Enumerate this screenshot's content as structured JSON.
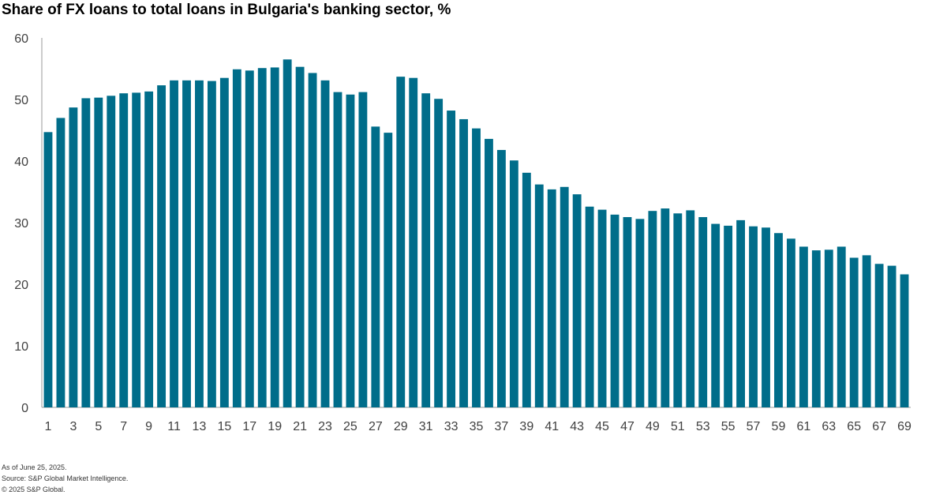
{
  "chart_data": {
    "type": "bar",
    "title": "Share of FX loans to total loans in Bulgaria's banking sector, %",
    "xlabel": "",
    "ylabel": "",
    "ylim": [
      0,
      60
    ],
    "yticks": [
      0,
      10,
      20,
      30,
      40,
      50,
      60
    ],
    "grid": false,
    "bar_color": "#006d8a",
    "categories": [
      1,
      2,
      3,
      4,
      5,
      6,
      7,
      8,
      9,
      10,
      11,
      12,
      13,
      14,
      15,
      16,
      17,
      18,
      19,
      20,
      21,
      22,
      23,
      24,
      25,
      26,
      27,
      28,
      29,
      30,
      31,
      32,
      33,
      34,
      35,
      36,
      37,
      38,
      39,
      40,
      41,
      42,
      43,
      44,
      45,
      46,
      47,
      48,
      49,
      50,
      51,
      52,
      53,
      54,
      55,
      56,
      57,
      58,
      59,
      60,
      61,
      62,
      63,
      64,
      65,
      66,
      67,
      68,
      69
    ],
    "x_tick_labels": [
      "1",
      "3",
      "5",
      "7",
      "9",
      "11",
      "13",
      "15",
      "17",
      "19",
      "21",
      "23",
      "25",
      "27",
      "29",
      "31",
      "33",
      "35",
      "37",
      "39",
      "41",
      "43",
      "45",
      "47",
      "49",
      "51",
      "53",
      "55",
      "57",
      "59",
      "61",
      "63",
      "65",
      "67",
      "69"
    ],
    "values": [
      44.7,
      47.0,
      48.7,
      50.2,
      50.3,
      50.6,
      51.0,
      51.1,
      51.3,
      52.3,
      53.1,
      53.1,
      53.1,
      53.0,
      53.5,
      54.9,
      54.7,
      55.1,
      55.2,
      56.5,
      55.3,
      54.3,
      53.1,
      51.2,
      50.8,
      51.2,
      45.6,
      44.6,
      53.7,
      53.5,
      51.0,
      50.1,
      48.2,
      46.8,
      45.3,
      43.6,
      41.8,
      40.1,
      38.1,
      36.2,
      35.4,
      35.8,
      34.6,
      32.6,
      32.1,
      31.3,
      30.9,
      30.6,
      31.9,
      32.3,
      31.5,
      32.0,
      30.9,
      29.8,
      29.5,
      30.4,
      29.4,
      29.2,
      28.3,
      27.4,
      26.1,
      25.5,
      25.6,
      26.1,
      24.3,
      24.7,
      23.3,
      23.0,
      21.6
    ]
  },
  "footnotes": {
    "as_of": "As of June 25, 2025.",
    "source": "Source: S&P Global Market Intelligence.",
    "copyright": "© 2025 S&P Global."
  }
}
